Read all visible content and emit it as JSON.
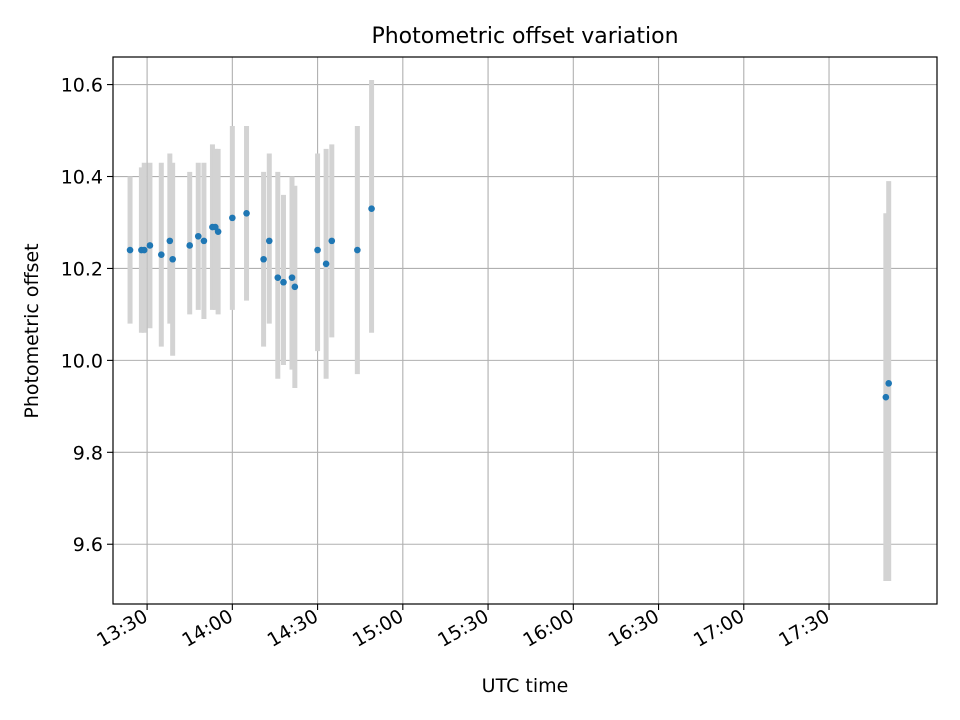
{
  "chart_data": {
    "type": "scatter",
    "title": "Photometric offset variation",
    "xlabel": "UTC time",
    "ylabel": "Photometric offset",
    "xlim": [
      "13:18",
      "18:08"
    ],
    "ylim": [
      9.47,
      10.66
    ],
    "xticks": [
      "13:30",
      "14:00",
      "14:30",
      "15:00",
      "15:30",
      "16:00",
      "16:30",
      "17:00",
      "17:30"
    ],
    "yticks": [
      9.6,
      9.8,
      10.0,
      10.2,
      10.4,
      10.6
    ],
    "grid": true,
    "marker_color": "#1f77b4",
    "errorbar_color": "#d3d3d3",
    "points": [
      {
        "x": "13:24",
        "y": 10.24,
        "ylo": 10.08,
        "yhi": 10.4
      },
      {
        "x": "13:28",
        "y": 10.24,
        "ylo": 10.06,
        "yhi": 10.42
      },
      {
        "x": "13:29",
        "y": 10.24,
        "ylo": 10.06,
        "yhi": 10.43
      },
      {
        "x": "13:31",
        "y": 10.25,
        "ylo": 10.07,
        "yhi": 10.43
      },
      {
        "x": "13:35",
        "y": 10.23,
        "ylo": 10.03,
        "yhi": 10.43
      },
      {
        "x": "13:38",
        "y": 10.26,
        "ylo": 10.08,
        "yhi": 10.45
      },
      {
        "x": "13:39",
        "y": 10.22,
        "ylo": 10.01,
        "yhi": 10.43
      },
      {
        "x": "13:45",
        "y": 10.25,
        "ylo": 10.1,
        "yhi": 10.41
      },
      {
        "x": "13:48",
        "y": 10.27,
        "ylo": 10.11,
        "yhi": 10.43
      },
      {
        "x": "13:50",
        "y": 10.26,
        "ylo": 10.09,
        "yhi": 10.43
      },
      {
        "x": "13:53",
        "y": 10.29,
        "ylo": 10.11,
        "yhi": 10.47
      },
      {
        "x": "13:54",
        "y": 10.29,
        "ylo": 10.11,
        "yhi": 10.46
      },
      {
        "x": "13:55",
        "y": 10.28,
        "ylo": 10.1,
        "yhi": 10.46
      },
      {
        "x": "14:00",
        "y": 10.31,
        "ylo": 10.11,
        "yhi": 10.51
      },
      {
        "x": "14:05",
        "y": 10.32,
        "ylo": 10.13,
        "yhi": 10.51
      },
      {
        "x": "14:11",
        "y": 10.22,
        "ylo": 10.03,
        "yhi": 10.41
      },
      {
        "x": "14:13",
        "y": 10.26,
        "ylo": 10.08,
        "yhi": 10.45
      },
      {
        "x": "14:16",
        "y": 10.18,
        "ylo": 9.96,
        "yhi": 10.41
      },
      {
        "x": "14:18",
        "y": 10.17,
        "ylo": 9.99,
        "yhi": 10.36
      },
      {
        "x": "14:21",
        "y": 10.18,
        "ylo": 9.98,
        "yhi": 10.4
      },
      {
        "x": "14:22",
        "y": 10.16,
        "ylo": 9.94,
        "yhi": 10.38
      },
      {
        "x": "14:30",
        "y": 10.24,
        "ylo": 10.02,
        "yhi": 10.45
      },
      {
        "x": "14:33",
        "y": 10.21,
        "ylo": 9.96,
        "yhi": 10.46
      },
      {
        "x": "14:35",
        "y": 10.26,
        "ylo": 10.05,
        "yhi": 10.47
      },
      {
        "x": "14:44",
        "y": 10.24,
        "ylo": 9.97,
        "yhi": 10.51
      },
      {
        "x": "14:49",
        "y": 10.33,
        "ylo": 10.06,
        "yhi": 10.61
      },
      {
        "x": "17:50",
        "y": 9.92,
        "ylo": 9.52,
        "yhi": 10.32
      },
      {
        "x": "17:51",
        "y": 9.95,
        "ylo": 9.52,
        "yhi": 10.39
      }
    ]
  }
}
